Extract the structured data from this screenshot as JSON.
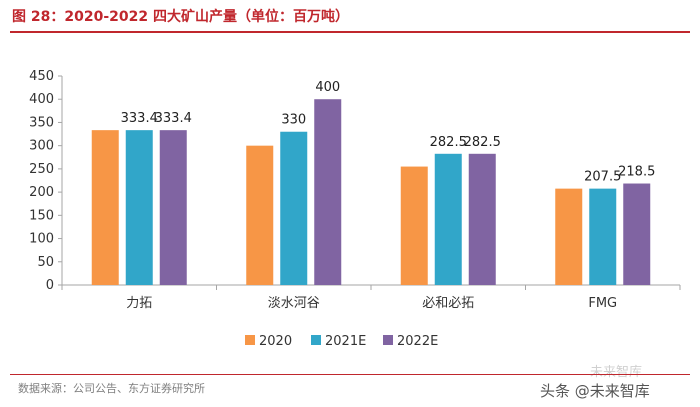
{
  "header": {
    "title": "图 28：2020-2022 四大矿山产量（单位：百万吨）"
  },
  "footer": {
    "source": "数据来源：公司公告、东方证券研究所"
  },
  "watermark": {
    "top": "未来智库",
    "bottom": "头条 @未来智库"
  },
  "chart_data": {
    "type": "bar",
    "categories": [
      "力拓",
      "淡水河谷",
      "必和必拓",
      "FMG"
    ],
    "series": [
      {
        "name": "2020",
        "color": "#f79646",
        "values": [
          333.4,
          300,
          255,
          207.5
        ]
      },
      {
        "name": "2021E",
        "color": "#31a6c9",
        "values": [
          333.4,
          330,
          282.5,
          207.5
        ]
      },
      {
        "name": "2022E",
        "color": "#8064a2",
        "values": [
          333.4,
          400,
          282.5,
          218.5
        ]
      }
    ],
    "data_labels": [
      {
        "category": 0,
        "series": 1,
        "text": "333.4"
      },
      {
        "category": 0,
        "series": 2,
        "text": "333.4"
      },
      {
        "category": 1,
        "series": 1,
        "text": "330"
      },
      {
        "category": 1,
        "series": 2,
        "text": "400"
      },
      {
        "category": 2,
        "series": 1,
        "text": "282.5"
      },
      {
        "category": 2,
        "series": 2,
        "text": "282.5"
      },
      {
        "category": 3,
        "series": 1,
        "text": "207.5"
      },
      {
        "category": 3,
        "series": 2,
        "text": "218.5"
      }
    ],
    "ylim": [
      0,
      450
    ],
    "yticks": [
      0,
      50,
      100,
      150,
      200,
      250,
      300,
      350,
      400,
      450
    ],
    "grid": false,
    "legend_position": "bottom"
  }
}
